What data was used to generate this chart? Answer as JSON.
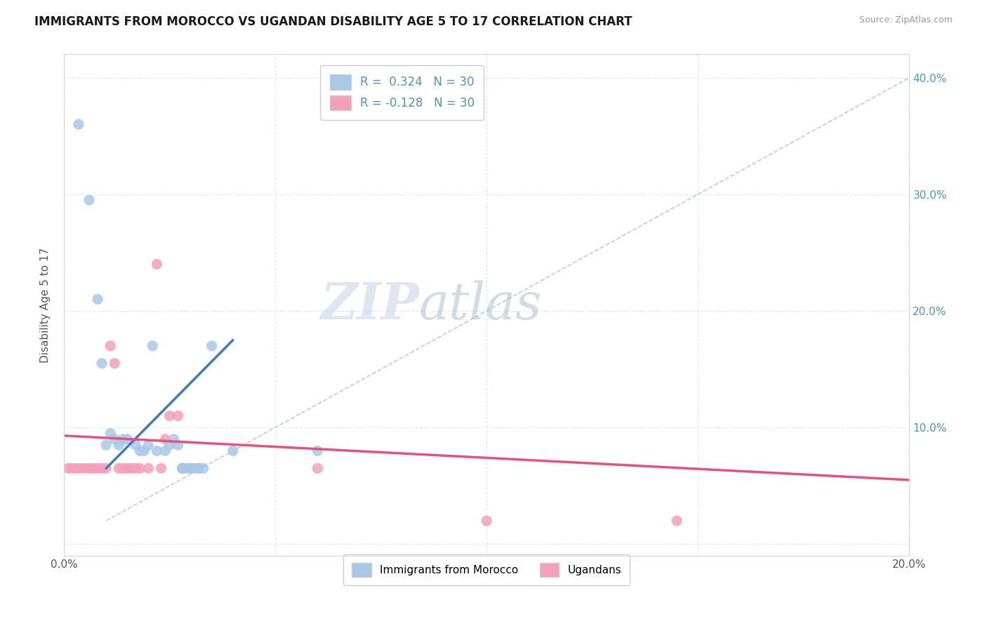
{
  "title": "IMMIGRANTS FROM MOROCCO VS UGANDAN DISABILITY AGE 5 TO 17 CORRELATION CHART",
  "source": "Source: ZipAtlas.com",
  "ylabel": "Disability Age 5 to 17",
  "xlim": [
    0.0,
    0.2
  ],
  "ylim": [
    -0.01,
    0.42
  ],
  "xtick_positions": [
    0.0,
    0.05,
    0.1,
    0.15,
    0.2
  ],
  "xtick_labels": [
    "0.0%",
    "",
    "",
    "",
    "20.0%"
  ],
  "ytick_positions": [
    0.0,
    0.1,
    0.2,
    0.3,
    0.4
  ],
  "ytick_labels_right": [
    "",
    "10.0%",
    "20.0%",
    "30.0%",
    "40.0%"
  ],
  "r_morocco": 0.324,
  "n_morocco": 30,
  "r_ugandan": -0.128,
  "n_ugandan": 30,
  "color_morocco": "#a8c8e8",
  "color_ugandan": "#f4a0b8",
  "line_color_morocco": "#3a7abf",
  "line_color_ugandan": "#e85080",
  "watermark_zip": "ZIP",
  "watermark_atlas": "atlas",
  "background_color": "#ffffff",
  "grid_color": "#e0e8f0",
  "morocco_x": [
    0.0035,
    0.006,
    0.008,
    0.009,
    0.01,
    0.011,
    0.012,
    0.013,
    0.014,
    0.015,
    0.017,
    0.018,
    0.019,
    0.02,
    0.021,
    0.022,
    0.024,
    0.025,
    0.026,
    0.027,
    0.028,
    0.028,
    0.029,
    0.03,
    0.031,
    0.032,
    0.033,
    0.035,
    0.04,
    0.06
  ],
  "morocco_y": [
    0.36,
    0.295,
    0.21,
    0.155,
    0.085,
    0.095,
    0.09,
    0.085,
    0.09,
    0.09,
    0.085,
    0.08,
    0.08,
    0.085,
    0.17,
    0.08,
    0.08,
    0.085,
    0.09,
    0.085,
    0.065,
    0.065,
    0.065,
    0.065,
    0.065,
    0.065,
    0.065,
    0.17,
    0.08,
    0.08
  ],
  "ugandan_x": [
    0.001,
    0.002,
    0.003,
    0.004,
    0.005,
    0.006,
    0.007,
    0.008,
    0.009,
    0.01,
    0.011,
    0.012,
    0.013,
    0.014,
    0.015,
    0.016,
    0.017,
    0.018,
    0.02,
    0.022,
    0.023,
    0.024,
    0.025,
    0.027,
    0.028,
    0.03,
    0.032,
    0.06,
    0.1,
    0.145
  ],
  "ugandan_y": [
    0.065,
    0.065,
    0.065,
    0.065,
    0.065,
    0.065,
    0.065,
    0.065,
    0.065,
    0.065,
    0.17,
    0.155,
    0.065,
    0.065,
    0.065,
    0.065,
    0.065,
    0.065,
    0.065,
    0.24,
    0.065,
    0.09,
    0.11,
    0.11,
    0.065,
    0.065,
    0.065,
    0.065,
    0.02,
    0.02
  ],
  "morocco_line_x": [
    0.01,
    0.04
  ],
  "morocco_line_y": [
    0.065,
    0.175
  ],
  "ugandan_line_x": [
    0.0,
    0.2
  ],
  "ugandan_line_y": [
    0.093,
    0.055
  ]
}
